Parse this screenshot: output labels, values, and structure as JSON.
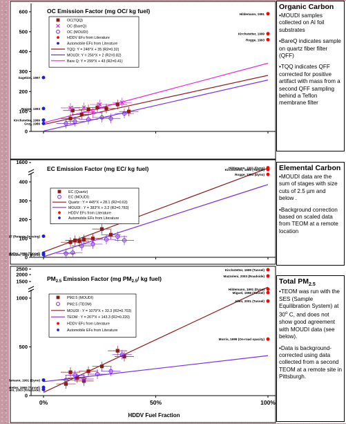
{
  "slide": {
    "x_axis_label": "HDDV Fuel Fraction",
    "x_ticks": [
      "0%",
      "50%",
      "100%"
    ]
  },
  "side_panels": {
    "organic_carbon": {
      "title": "Organic Carbon",
      "items": [
        "•MOUDI samples collected on Al foil substrates",
        "•BareQ indicates sample on quartz fiber filter (QFF)",
        "•TQQ indicates QFF corrected for positive artifact with mass from a second QFF sampling behind a Teflon membrane filter"
      ]
    },
    "elemental_carbon": {
      "title": "Elemental Carbon",
      "items": [
        "•MOUDI data are the sum of stages with size cuts of 2.5 µm and below .",
        "•Background correction based on scaled data from TEOM at a remote location"
      ]
    },
    "total_pm": {
      "title_main": "Total PM",
      "title_sub": "2.5",
      "item1_pre": "•TEOM was run with the SES (Sample Equilibration System) at 30",
      "item1_deg": "o",
      "item1_post": " C, and does not show good agreement with MOUDI data (see below).",
      "item2": "•Data is background-corrected using data collected from a second TEOM at a remote site in Pittsburgh."
    }
  },
  "chart_data": [
    {
      "type": "scatter",
      "title": "OC Emission Factor (mg OC/ kg fuel)",
      "xlabel": "HDDV Fuel Fraction",
      "ylabel": "",
      "xlim": [
        0,
        1.04
      ],
      "ylim": [
        0,
        600
      ],
      "yticks": [
        0,
        100,
        200,
        300,
        400,
        500,
        600
      ],
      "legend": {
        "position": "top-left",
        "entries": [
          {
            "label": "OC(TQQ)",
            "marker": "square-filled",
            "color": "#8b1a1a"
          },
          {
            "label": "OC (BareQ)",
            "marker": "x",
            "color": "#cc33cc"
          },
          {
            "label": "OC (MOUDI)",
            "marker": "circle-open",
            "color": "#7a2be2"
          },
          {
            "label": "HDDV EFs from Literature",
            "marker": "dot",
            "color": "#ff0000"
          },
          {
            "label": "Automobile EFs from Literature",
            "marker": "dot",
            "color": "#1f1fd6"
          },
          {
            "label": "TQQ: Y = 246*X + 35 (R2=0.32)",
            "marker": "line",
            "color": "#8b1a1a"
          },
          {
            "label": "MOUDI: Y = 256*X + 2 (R2=0.82)",
            "marker": "line",
            "color": "#7a2be2"
          },
          {
            "label": "Bare Q: Y = 299*X + 43 (R2=0.41)",
            "marker": "line",
            "color": "#e61ee6"
          }
        ]
      },
      "series": [
        {
          "name": "OC(TQQ)",
          "marker": "square-filled",
          "color": "#8b1a1a",
          "points": [
            [
              0.13,
              105
            ],
            [
              0.2,
              110
            ],
            [
              0.24,
              120
            ],
            [
              0.28,
              115
            ],
            [
              0.33,
              135
            ],
            [
              0.12,
              65
            ],
            [
              0.17,
              85
            ],
            [
              0.38,
              100
            ]
          ]
        },
        {
          "name": "OC (BareQ)",
          "marker": "x",
          "color": "#cc33cc",
          "points": [
            [
              0.12,
              118
            ],
            [
              0.18,
              120
            ],
            [
              0.25,
              135
            ],
            [
              0.35,
              145
            ],
            [
              0.22,
              95
            ]
          ]
        },
        {
          "name": "OC (MOUDI)",
          "marker": "circle-open",
          "color": "#7a2be2",
          "points": [
            [
              0.1,
              40
            ],
            [
              0.14,
              50
            ],
            [
              0.2,
              60
            ],
            [
              0.26,
              70
            ],
            [
              0.3,
              65
            ],
            [
              0.36,
              90
            ]
          ]
        }
      ],
      "fits": [
        {
          "name": "TQQ",
          "slope": 246,
          "intercept": 35,
          "color": "#8b1a1a"
        },
        {
          "name": "MOUDI",
          "slope": 256,
          "intercept": 2,
          "color": "#7a2be2"
        },
        {
          "name": "Bare Q",
          "slope": 299,
          "intercept": 43,
          "color": "#e61ee6"
        }
      ],
      "literature": [
        {
          "label": "Hildemann, 1991",
          "x": 1.0,
          "y": 590,
          "color": "#ff0000",
          "side": "left"
        },
        {
          "label": "Kirchstetter, 1999",
          "x": 1.0,
          "y": 490,
          "color": "#ff0000",
          "side": "left"
        },
        {
          "label": "Rogge, 1993",
          "x": 1.0,
          "y": 460,
          "color": "#ff0000",
          "side": "left"
        },
        {
          "label": "Sagebiel, 1997",
          "x": 0.0,
          "y": 270,
          "color": "#1f1fd6",
          "side": "left"
        },
        {
          "label": "Rogge, 1993",
          "x": 0.0,
          "y": 115,
          "color": "#1f1fd6",
          "side": "left"
        },
        {
          "label": "Kirchstetter, 1999",
          "x": 0.0,
          "y": 57,
          "color": "#1f1fd6",
          "side": "left"
        },
        {
          "label": "Gray, 1986",
          "x": 0.0,
          "y": 40,
          "color": "#1f1fd6",
          "side": "left"
        }
      ]
    },
    {
      "type": "scatter",
      "title": "EC Emission Factor (mg EC/ kg fuel)",
      "xlabel": "HDDV Fuel Fraction",
      "ylabel": "",
      "xlim": [
        0,
        1.04
      ],
      "ylim": [
        0,
        480
      ],
      "yticks": [
        0,
        100,
        200,
        300,
        400
      ],
      "ybreak_label": "1600",
      "legend": {
        "position": "top-left",
        "entries": [
          {
            "label": "EC (Quartz)",
            "marker": "square-filled",
            "color": "#8b1a1a"
          },
          {
            "label": "EC (MOUDI)",
            "marker": "circle-open",
            "color": "#7a2be2"
          },
          {
            "label": "Quartz : Y = 445*X + 28.1 (R2=0.63)",
            "marker": "line",
            "color": "#8b1a1a"
          },
          {
            "label": "MOUDI : Y = 383*X + 3.2 (R2=0.783)",
            "marker": "line",
            "color": "#7a2be2"
          },
          {
            "label": "HDDV EFs from Literature",
            "marker": "dot",
            "color": "#ff0000"
          },
          {
            "label": "Automobile EFs from Literature",
            "marker": "dot",
            "color": "#1f1fd6"
          }
        ]
      },
      "series": [
        {
          "name": "EC (Quartz)",
          "marker": "square-filled",
          "color": "#8b1a1a",
          "points": [
            [
              0.12,
              80
            ],
            [
              0.14,
              90
            ],
            [
              0.18,
              95
            ],
            [
              0.22,
              100
            ],
            [
              0.26,
              150
            ],
            [
              0.3,
              120
            ],
            [
              0.33,
              200
            ],
            [
              0.16,
              85
            ]
          ]
        },
        {
          "name": "EC (MOUDI)",
          "marker": "circle-open",
          "color": "#7a2be2",
          "points": [
            [
              0.1,
              20
            ],
            [
              0.13,
              25
            ],
            [
              0.17,
              60
            ],
            [
              0.22,
              70
            ],
            [
              0.28,
              95
            ],
            [
              0.33,
              110
            ],
            [
              0.36,
              90
            ]
          ]
        }
      ],
      "fits": [
        {
          "name": "Quartz",
          "slope": 445,
          "intercept": 28.1,
          "color": "#8b1a1a"
        },
        {
          "name": "MOUDI",
          "slope": 383,
          "intercept": 3.2,
          "color": "#7a2be2"
        }
      ],
      "literature": [
        {
          "label": "Hildemann, 1991 (Dyno)",
          "x": 1.0,
          "y": 475,
          "color": "#ff0000",
          "side": "left"
        },
        {
          "label": "Kirchstetter, 1999 (Tunnel)",
          "x": 1.0,
          "y": 466,
          "color": "#ff0000",
          "side": "left"
        },
        {
          "label": "Rogge, 1993 (Dyno)",
          "x": 1.0,
          "y": 440,
          "color": "#ff0000",
          "side": "left"
        },
        {
          "label": "Sagebiel, 1997 (Remote Sensing)",
          "x": 0.0,
          "y": 112,
          "color": "#1f1fd6",
          "side": "left"
        },
        {
          "label": "Kirchstetter, 1999 (Tunnel)",
          "x": 0.0,
          "y": 22,
          "color": "#1f1fd6",
          "side": "left"
        },
        {
          "label": "Hildemann, 1991 (Dyno)",
          "x": 0.0,
          "y": 14,
          "color": "#1f1fd6",
          "side": "left"
        }
      ]
    },
    {
      "type": "scatter",
      "title": "PM2.5 Emission Factor (mg PM2.5/ kg fuel)",
      "xlabel": "HDDV Fuel Fraction",
      "ylabel": "",
      "xlim": [
        0,
        1.04
      ],
      "ylim": [
        0,
        1000
      ],
      "yticks": [
        0,
        500,
        1000
      ],
      "ybreak_ticks": [
        "2500",
        "2000",
        "1500"
      ],
      "legend": {
        "position": "top-left",
        "entries": [
          {
            "label": "PM2.5 (MOUDI)",
            "marker": "square-filled",
            "color": "#8b1a1a"
          },
          {
            "label": "PM2.5 (TEOM)",
            "marker": "circle-open",
            "color": "#7a2be2"
          },
          {
            "label": "MOUDI : Y = 1079*X + 33.3 (R2=0.703)",
            "marker": "line",
            "color": "#8b1a1a"
          },
          {
            "label": "TEOM : Y = 267*X + 143.3 (R2=0.220)",
            "marker": "line",
            "color": "#7a2be2"
          },
          {
            "label": "HDDV EFs from Literature",
            "marker": "dot",
            "color": "#ff0000"
          },
          {
            "label": "Automobile EFs from Literature",
            "marker": "dot",
            "color": "#1f1fd6"
          }
        ]
      },
      "series": [
        {
          "name": "PM2.5 (MOUDI)",
          "marker": "square-filled",
          "color": "#8b1a1a",
          "points": [
            [
              0.1,
              120
            ],
            [
              0.12,
              240
            ],
            [
              0.15,
              180
            ],
            [
              0.2,
              250
            ],
            [
              0.26,
              300
            ],
            [
              0.33,
              460
            ],
            [
              0.36,
              400
            ],
            [
              0.18,
              150
            ]
          ]
        },
        {
          "name": "PM2.5 (TEOM)",
          "marker": "circle-open",
          "color": "#7a2be2",
          "points": [
            [
              0.1,
              160
            ],
            [
              0.14,
              210
            ],
            [
              0.18,
              170
            ],
            [
              0.24,
              220
            ],
            [
              0.3,
              250
            ],
            [
              0.35,
              420
            ]
          ]
        }
      ],
      "fits": [
        {
          "name": "MOUDI",
          "slope": 1079,
          "intercept": 33.3,
          "color": "#8b1a1a"
        },
        {
          "name": "TEOM",
          "slope": 267,
          "intercept": 143.3,
          "color": "#7a2be2"
        }
      ],
      "literature": [
        {
          "label": "Kirchstetter, 1999 (Tunnel)",
          "x": 1.0,
          "y_top": 2600,
          "color": "#ff0000",
          "side": "left"
        },
        {
          "label": "Mazzoleni, 2003 (Roadside)",
          "x": 1.0,
          "y_top": 2300,
          "color": "#ff0000",
          "side": "left"
        },
        {
          "label": "Hildemann, 1991 (Dyno)",
          "x": 1.0,
          "y_top": 1850,
          "color": "#ff0000",
          "side": "left"
        },
        {
          "label": "Miguel, 1998 (Tunnel)",
          "x": 1.0,
          "y_top": 1760,
          "color": "#ff0000",
          "side": "left"
        },
        {
          "label": "Allen, 2001 (Tunnel)",
          "x": 1.0,
          "y": 970,
          "color": "#ff0000",
          "side": "left"
        },
        {
          "label": "Morris, 1999 (On-road opacity)",
          "x": 1.0,
          "y": 580,
          "color": "#ff0000",
          "side": "left"
        },
        {
          "label": "Hildemann, 1991 (Dyno)",
          "x": 0.0,
          "y": 160,
          "color": "#1f1fd6",
          "side": "left"
        },
        {
          "label": "Kirchstetter, 1999 (Tunnel)",
          "x": 0.0,
          "y": 85,
          "color": "#1f1fd6",
          "side": "left"
        },
        {
          "label": "Mazzoleni, 2003 (Roadside)",
          "x": 0.0,
          "y": 62,
          "color": "#1f1fd6",
          "side": "left"
        }
      ]
    }
  ]
}
